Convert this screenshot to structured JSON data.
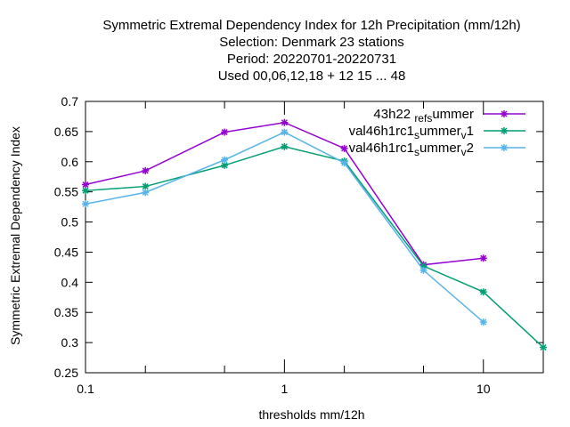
{
  "chart_data": {
    "type": "line",
    "title_lines": [
      "Symmetric Extremal Dependency Index  for 12h Precipitation (mm/12h)",
      "Selection: Denmark     23 stations",
      "Period: 20220701-20220731",
      "Used  00,06,12,18  + 12 15 ... 48"
    ],
    "xlabel": "thresholds mm/12h",
    "ylabel": "Symmetric Extremal Dependency Index",
    "x_scale": "log",
    "xlim": [
      0.1,
      20
    ],
    "ylim": [
      0.25,
      0.7
    ],
    "x_ticks": [
      {
        "value": 0.1,
        "label": "0.1"
      },
      {
        "value": 1,
        "label": "1"
      },
      {
        "value": 10,
        "label": "10"
      }
    ],
    "x_minor_ticks": [
      0.2,
      0.5,
      2,
      5,
      20
    ],
    "y_ticks": [
      {
        "value": 0.25,
        "label": "0.25"
      },
      {
        "value": 0.3,
        "label": "0.3"
      },
      {
        "value": 0.35,
        "label": "0.35"
      },
      {
        "value": 0.4,
        "label": "0.4"
      },
      {
        "value": 0.45,
        "label": "0.45"
      },
      {
        "value": 0.5,
        "label": "0.5"
      },
      {
        "value": 0.55,
        "label": "0.55"
      },
      {
        "value": 0.6,
        "label": "0.6"
      },
      {
        "value": 0.65,
        "label": "0.65"
      },
      {
        "value": 0.7,
        "label": "0.7"
      }
    ],
    "grid": false,
    "legend_position": "top-right",
    "series": [
      {
        "name_parts": [
          [
            "43h22 ",
            "n"
          ],
          [
            "ref",
            "sub"
          ],
          [
            "s",
            "sub"
          ],
          [
            "ummer",
            "n"
          ]
        ],
        "color": "#9400d3",
        "x": [
          0.1,
          0.2,
          0.5,
          1,
          2,
          5,
          10
        ],
        "y": [
          0.562,
          0.585,
          0.649,
          0.665,
          0.622,
          0.429,
          0.44
        ]
      },
      {
        "name_parts": [
          [
            "val46h1rc1",
            "n"
          ],
          [
            "s",
            "sub"
          ],
          [
            "ummer",
            "n"
          ],
          [
            "v",
            "sub"
          ],
          [
            "1",
            "n"
          ]
        ],
        "color": "#009e73",
        "x": [
          0.1,
          0.2,
          0.5,
          1,
          2,
          5,
          10,
          20
        ],
        "y": [
          0.552,
          0.559,
          0.594,
          0.625,
          0.601,
          0.427,
          0.384,
          0.292
        ]
      },
      {
        "name_parts": [
          [
            "val46h1rc1",
            "n"
          ],
          [
            "s",
            "sub"
          ],
          [
            "ummer",
            "n"
          ],
          [
            "v",
            "sub"
          ],
          [
            "2",
            "n"
          ]
        ],
        "color": "#56b4e9",
        "x": [
          0.1,
          0.2,
          0.5,
          1,
          2,
          5,
          10
        ],
        "y": [
          0.53,
          0.549,
          0.603,
          0.649,
          0.598,
          0.42,
          0.334
        ]
      }
    ]
  }
}
